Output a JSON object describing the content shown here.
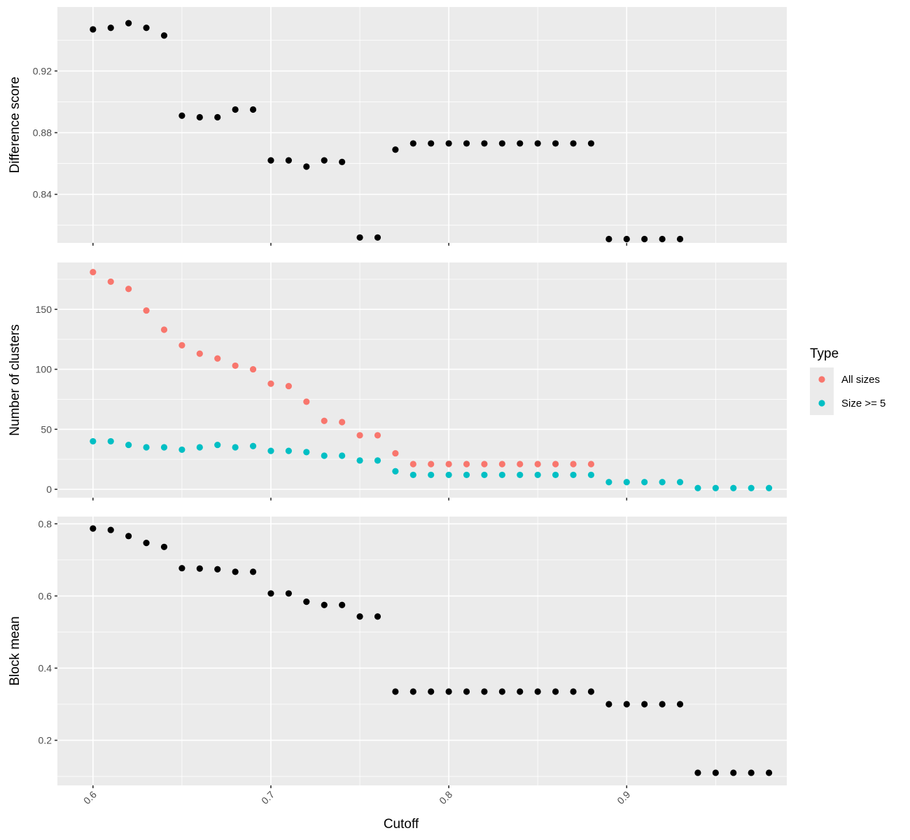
{
  "chart_data": {
    "type": "scatter",
    "xlabel": "Cutoff",
    "xlim": [
      0.58,
      0.99
    ],
    "x_ticks": [
      0.6,
      0.7,
      0.8,
      0.9
    ],
    "x_tick_labels": [
      "0.6",
      "0.7",
      "0.8",
      "0.9"
    ],
    "grid": true,
    "legend": {
      "title": "Type",
      "placement": "right",
      "entries": [
        {
          "label": "All sizes",
          "color": "#F8766D"
        },
        {
          "label": "Size >= 5",
          "color": "#00BFC4"
        }
      ]
    },
    "panels": [
      {
        "ylabel": "Difference score",
        "ylim": [
          0.8085,
          0.9615
        ],
        "y_ticks": [
          0.84,
          0.88,
          0.92
        ],
        "y_tick_labels": [
          "0.84",
          "0.88",
          "0.92"
        ],
        "series": [
          {
            "color": "#000000",
            "x": [
              0.6,
              0.61,
              0.62,
              0.63,
              0.64,
              0.65,
              0.66,
              0.67,
              0.68,
              0.69,
              0.7,
              0.71,
              0.72,
              0.73,
              0.74,
              0.75,
              0.76,
              0.77,
              0.78,
              0.79,
              0.8,
              0.81,
              0.82,
              0.83,
              0.84,
              0.85,
              0.86,
              0.87,
              0.88,
              0.89,
              0.9,
              0.91,
              0.92,
              0.93
            ],
            "y": [
              0.947,
              0.948,
              0.951,
              0.948,
              0.943,
              0.891,
              0.89,
              0.89,
              0.895,
              0.895,
              0.862,
              0.862,
              0.858,
              0.862,
              0.861,
              0.812,
              0.812,
              0.869,
              0.873,
              0.873,
              0.873,
              0.873,
              0.873,
              0.873,
              0.873,
              0.873,
              0.873,
              0.873,
              0.873,
              0.811,
              0.811,
              0.811,
              0.811,
              0.811
            ]
          }
        ]
      },
      {
        "ylabel": "Number of clusters",
        "ylim": [
          -7,
          189
        ],
        "y_ticks": [
          0,
          50,
          100,
          150
        ],
        "y_tick_labels": [
          "0",
          "50",
          "100",
          "150"
        ],
        "series": [
          {
            "name": "All sizes",
            "color": "#F8766D",
            "x": [
              0.6,
              0.61,
              0.62,
              0.63,
              0.64,
              0.65,
              0.66,
              0.67,
              0.68,
              0.69,
              0.7,
              0.71,
              0.72,
              0.73,
              0.74,
              0.75,
              0.76,
              0.77,
              0.78,
              0.79,
              0.8,
              0.81,
              0.82,
              0.83,
              0.84,
              0.85,
              0.86,
              0.87,
              0.88
            ],
            "y": [
              181,
              173,
              167,
              149,
              133,
              120,
              113,
              109,
              103,
              100,
              88,
              86,
              73,
              57,
              56,
              45,
              45,
              30,
              21,
              21,
              21,
              21,
              21,
              21,
              21,
              21,
              21,
              21,
              21
            ]
          },
          {
            "name": "Size >= 5",
            "color": "#00BFC4",
            "x": [
              0.6,
              0.61,
              0.62,
              0.63,
              0.64,
              0.65,
              0.66,
              0.67,
              0.68,
              0.69,
              0.7,
              0.71,
              0.72,
              0.73,
              0.74,
              0.75,
              0.76,
              0.77,
              0.78,
              0.79,
              0.8,
              0.81,
              0.82,
              0.83,
              0.84,
              0.85,
              0.86,
              0.87,
              0.88,
              0.89,
              0.9,
              0.91,
              0.92,
              0.93,
              0.94,
              0.95,
              0.96,
              0.97,
              0.98
            ],
            "y": [
              40,
              40,
              37,
              35,
              35,
              33,
              35,
              37,
              35,
              36,
              32,
              32,
              31,
              28,
              28,
              24,
              24,
              15,
              12,
              12,
              12,
              12,
              12,
              12,
              12,
              12,
              12,
              12,
              12,
              6,
              6,
              6,
              6,
              6,
              1,
              1,
              1,
              1,
              1
            ]
          }
        ]
      },
      {
        "ylabel": "Block mean",
        "ylim": [
          0.075,
          0.82
        ],
        "y_ticks": [
          0.2,
          0.4,
          0.6,
          0.8
        ],
        "y_tick_labels": [
          "0.2",
          "0.4",
          "0.6",
          "0.8"
        ],
        "series": [
          {
            "color": "#000000",
            "x": [
              0.6,
              0.61,
              0.62,
              0.63,
              0.64,
              0.65,
              0.66,
              0.67,
              0.68,
              0.69,
              0.7,
              0.71,
              0.72,
              0.73,
              0.74,
              0.75,
              0.76,
              0.77,
              0.78,
              0.79,
              0.8,
              0.81,
              0.82,
              0.83,
              0.84,
              0.85,
              0.86,
              0.87,
              0.88,
              0.89,
              0.9,
              0.91,
              0.92,
              0.93,
              0.94,
              0.95,
              0.96,
              0.97,
              0.98
            ],
            "y": [
              0.787,
              0.783,
              0.766,
              0.747,
              0.736,
              0.677,
              0.676,
              0.674,
              0.667,
              0.667,
              0.607,
              0.607,
              0.584,
              0.575,
              0.575,
              0.543,
              0.543,
              0.335,
              0.335,
              0.335,
              0.335,
              0.335,
              0.335,
              0.335,
              0.335,
              0.335,
              0.335,
              0.335,
              0.335,
              0.3,
              0.3,
              0.3,
              0.3,
              0.3,
              0.11,
              0.11,
              0.11,
              0.11,
              0.11
            ]
          }
        ]
      }
    ]
  }
}
